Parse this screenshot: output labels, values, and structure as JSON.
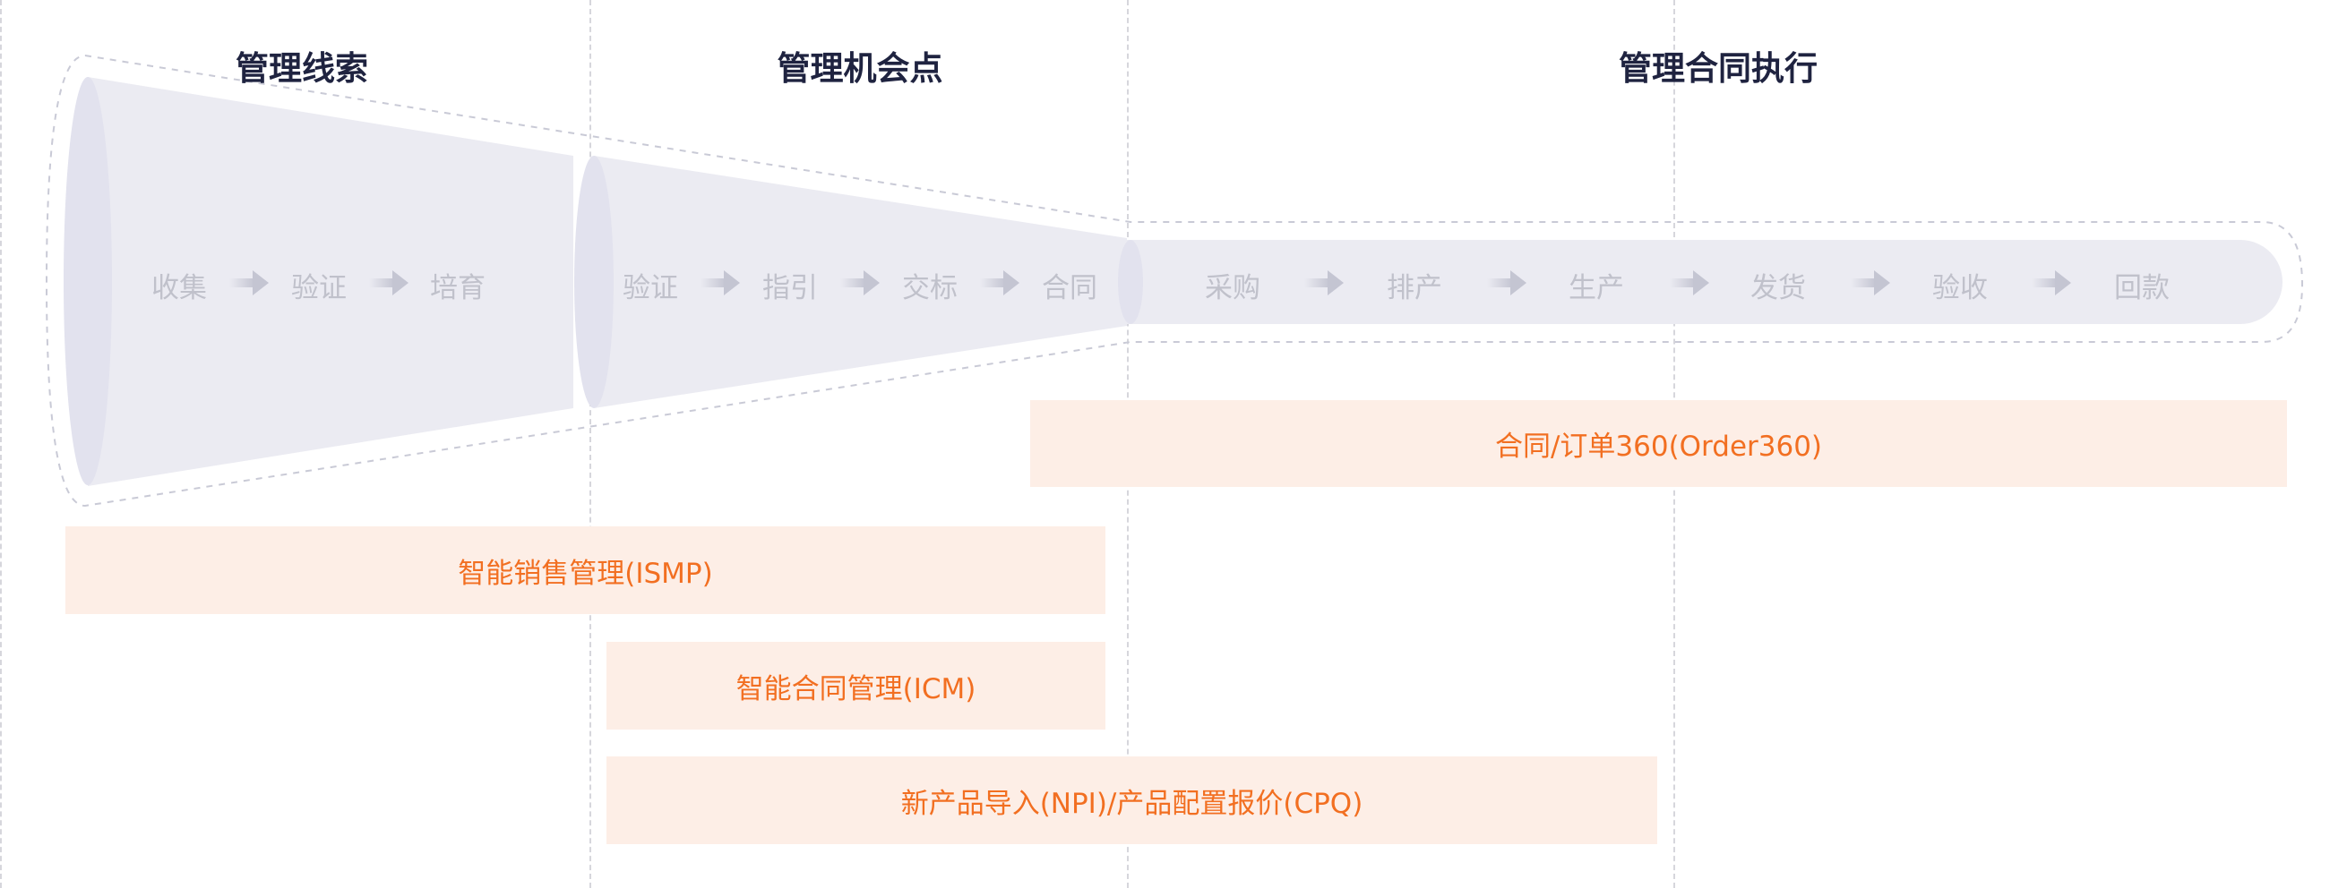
{
  "stages": [
    {
      "title": "管理线索",
      "steps": [
        "收集",
        "验证",
        "培育"
      ]
    },
    {
      "title": "管理机会点",
      "steps": [
        "验证",
        "指引",
        "交标",
        "合同"
      ]
    },
    {
      "title": "管理合同执行",
      "steps": [
        "采购",
        "排产",
        "生产",
        "发货",
        "验收",
        "回款"
      ]
    }
  ],
  "products": [
    {
      "label": "合同/订单360(Order360)"
    },
    {
      "label": "智能销售管理(ISMP)"
    },
    {
      "label": "智能合同管理(ICM)"
    },
    {
      "label": "新产品导入(NPI)/产品配置报价(CPQ)"
    }
  ],
  "colors": {
    "funnel_fill": "#ebebf2",
    "funnel_end": "#e2e2ee",
    "outline": "#c9cad6",
    "step_text": "#c0c1cb",
    "arrow": "#cfd0da",
    "title_text": "#1f2340",
    "bar_fill": "#fdeee6",
    "bar_text": "#f26f21",
    "guide_line": "#d6d6dc"
  }
}
